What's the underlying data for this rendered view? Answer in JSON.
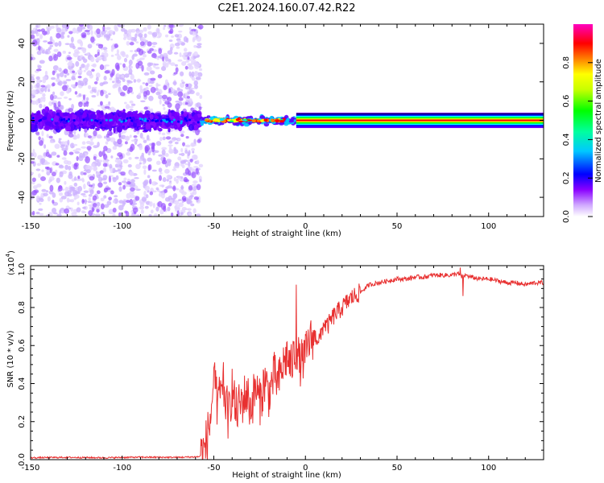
{
  "title": "C2E1.2024.160.07.42.R22",
  "chart_data": [
    {
      "type": "heatmap",
      "xlabel": "Height of straight line (km)",
      "ylabel": "Frequency (Hz)",
      "xlim": [
        -150,
        130
      ],
      "ylim": [
        -50,
        50
      ],
      "xticks": [
        -150,
        -100,
        -50,
        0,
        50,
        100
      ],
      "yticks": [
        -40,
        -20,
        0,
        20,
        40
      ],
      "colorbar": {
        "label": "Normalized spectral amplitude",
        "range": [
          0.0,
          1.0
        ],
        "ticks": [
          0.0,
          0.2,
          0.4,
          0.6,
          0.8
        ],
        "tick_labels": [
          "0.0",
          "0.2",
          "0.4",
          "0.6",
          "0.8"
        ],
        "colormap": [
          "#ffffff",
          "#8a00ff",
          "#0000ff",
          "#00ffff",
          "#00ff00",
          "#ffff00",
          "#ff8000",
          "#ff0000",
          "#ff00c0"
        ]
      },
      "features": [
        {
          "region": "noise",
          "x_range": [
            -150,
            -57
          ],
          "freq_spread": [
            -50,
            50
          ],
          "amplitude": 0.05
        },
        {
          "region": "noise_core",
          "x_range": [
            -150,
            -57
          ],
          "freq_spread": [
            -10,
            10
          ],
          "amplitude": 0.2
        },
        {
          "region": "tone_onset",
          "x_range": [
            -57,
            -5
          ],
          "freq": 0,
          "amplitude": 0.75
        },
        {
          "region": "tone",
          "x_range": [
            -5,
            130
          ],
          "freq": 0,
          "amplitude": 0.95
        }
      ]
    },
    {
      "type": "line",
      "xlabel": "Height of straight line (km)",
      "ylabel": "SNR (10 * v/v)",
      "y_scale_label": "(x10",
      "y_scale_exp": "4",
      "y_scale_close": ")",
      "xlim": [
        -150,
        130
      ],
      "ylim": [
        0,
        1.02
      ],
      "xticks": [
        -150,
        -100,
        -50,
        0,
        50,
        100
      ],
      "yticks": [
        0.0,
        0.2,
        0.4,
        0.6,
        0.8,
        1.0
      ],
      "ytick_labels": [
        "0.0",
        "0.2",
        "0.4",
        "0.6",
        "0.8",
        "1.0"
      ],
      "color": "#e83030",
      "series": [
        {
          "x": [
            -150,
            -130,
            -110,
            -90,
            -70,
            -58,
            -55,
            -52,
            -50,
            -48,
            -45,
            -42,
            -40,
            -38,
            -35,
            -32,
            -30,
            -27,
            -25,
            -22,
            -20,
            -17,
            -15,
            -12,
            -10,
            -8,
            -5,
            -3,
            0,
            2,
            5,
            8,
            10,
            12,
            15,
            20,
            25,
            30,
            35,
            40,
            45,
            50,
            55,
            60,
            65,
            70,
            75,
            80,
            83,
            85,
            88,
            90,
            95,
            100,
            105,
            110,
            115,
            120,
            125,
            130
          ],
          "y": [
            0.01,
            0.012,
            0.01,
            0.013,
            0.012,
            0.015,
            0.05,
            0.2,
            0.42,
            0.28,
            0.4,
            0.22,
            0.38,
            0.25,
            0.3,
            0.35,
            0.27,
            0.38,
            0.3,
            0.42,
            0.34,
            0.45,
            0.4,
            0.5,
            0.55,
            0.48,
            0.6,
            0.5,
            0.55,
            0.62,
            0.65,
            0.63,
            0.72,
            0.7,
            0.75,
            0.8,
            0.85,
            0.88,
            0.92,
            0.93,
            0.94,
            0.95,
            0.95,
            0.96,
            0.96,
            0.97,
            0.97,
            0.97,
            0.98,
            0.96,
            0.97,
            0.96,
            0.95,
            0.95,
            0.94,
            0.93,
            0.93,
            0.92,
            0.93,
            0.93
          ]
        }
      ]
    }
  ]
}
